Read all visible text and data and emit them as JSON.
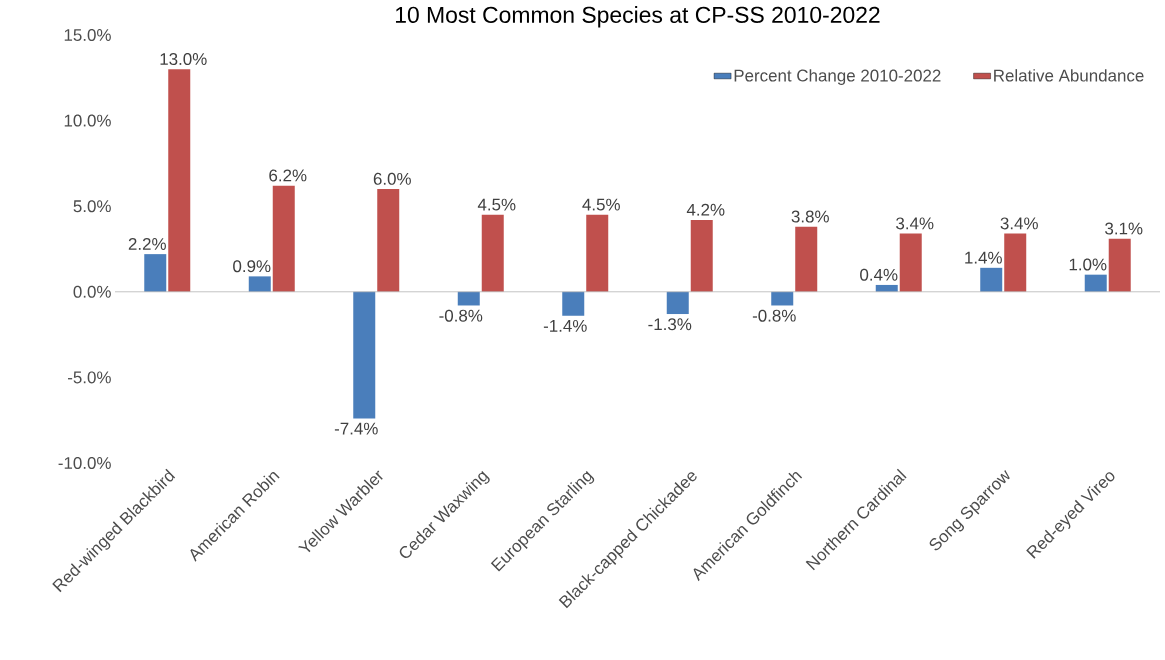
{
  "chart_data": {
    "type": "bar",
    "title": "10 Most Common Species at CP-SS 2010-2022",
    "categories": [
      "Red-winged Blackbird",
      "American Robin",
      "Yellow Warbler",
      "Cedar Waxwing",
      "European Starling",
      "Black-capped Chickadee",
      "American Goldfinch",
      "Northern Cardinal",
      "Song Sparrow",
      "Red-eyed Vireo"
    ],
    "series": [
      {
        "name": "Percent Change 2010-2022",
        "color": "#4a7ebb",
        "values": [
          2.2,
          0.9,
          -7.4,
          -0.8,
          -1.4,
          -1.3,
          -0.8,
          0.4,
          1.4,
          1.0
        ],
        "value_labels": [
          "2.2%",
          "0.9%",
          "-7.4%",
          "-0.8%",
          "-1.4%",
          "-1.3%",
          "-0.8%",
          "0.4%",
          "1.4%",
          "1.0%"
        ]
      },
      {
        "name": "Relative Abundance",
        "color": "#c0504d",
        "values": [
          13.0,
          6.2,
          6.0,
          4.5,
          4.5,
          4.2,
          3.8,
          3.4,
          3.4,
          3.1
        ],
        "value_labels": [
          "13.0%",
          "6.2%",
          "6.0%",
          "4.5%",
          "4.5%",
          "4.2%",
          "3.8%",
          "3.4%",
          "3.4%",
          "3.1%"
        ]
      }
    ],
    "ylim": [
      -10,
      15
    ],
    "yticks": [
      {
        "value": -10,
        "label": "-10.0%"
      },
      {
        "value": -5,
        "label": "-5.0%"
      },
      {
        "value": 0,
        "label": "0.0%"
      },
      {
        "value": 5,
        "label": "5.0%"
      },
      {
        "value": 10,
        "label": "10.0%"
      },
      {
        "value": 15,
        "label": "15.0%"
      }
    ],
    "legend": "top right"
  }
}
